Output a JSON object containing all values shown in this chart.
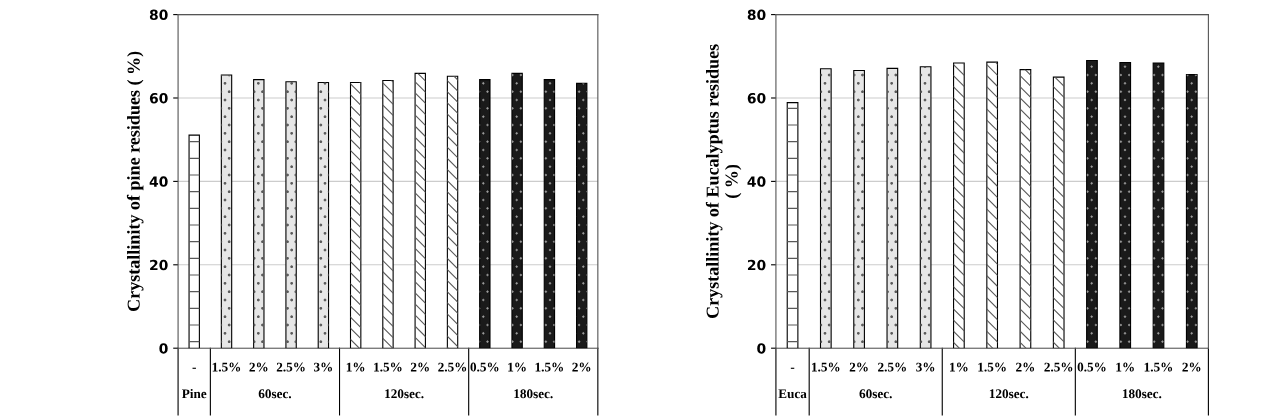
{
  "chart_data": [
    {
      "type": "bar",
      "ylabel": "Crystallinity of pine residues ( %)",
      "categories": [
        "-",
        "1.5%",
        "2%",
        "2.5%",
        "3%",
        "1%",
        "1.5%",
        "2%",
        "2.5%",
        "0.5%",
        "1%",
        "1.5%",
        "2%"
      ],
      "values": [
        51.1,
        65.5,
        64.4,
        63.9,
        63.7,
        63.7,
        64.2,
        65.9,
        65.2,
        64.4,
        65.9,
        64.4,
        63.5
      ],
      "colors": [
        "#ffffff",
        "#e6e6e6",
        "#e6e6e6",
        "#e6e6e6",
        "#e6e6e6",
        "#ffffff",
        "#ffffff",
        "#ffffff",
        "#ffffff",
        "#1a1a1a",
        "#1a1a1a",
        "#1a1a1a",
        "#1a1a1a"
      ],
      "annotations": [
        "Pine",
        "60sec.",
        "120sec.",
        "180sec."
      ],
      "ylim": [
        0,
        80
      ],
      "yticks": [
        0,
        20,
        40,
        60,
        80
      ],
      "grid": "y"
    },
    {
      "type": "bar",
      "ylabel": "Crystallinity of Eucalyptus residues\n( %)",
      "categories": [
        "-",
        "1.5%",
        "2%",
        "2.5%",
        "3%",
        "1%",
        "1.5%",
        "2%",
        "2.5%",
        "0.5%",
        "1%",
        "1.5%",
        "2%"
      ],
      "values": [
        58.9,
        67.0,
        66.6,
        67.1,
        67.5,
        68.4,
        68.6,
        66.8,
        65.0,
        69.0,
        68.5,
        68.4,
        65.6
      ],
      "colors": [
        "#ffffff",
        "#e6e6e6",
        "#e6e6e6",
        "#e6e6e6",
        "#e6e6e6",
        "#ffffff",
        "#ffffff",
        "#ffffff",
        "#ffffff",
        "#1a1a1a",
        "#1a1a1a",
        "#1a1a1a",
        "#1a1a1a"
      ],
      "annotations": [
        "Euca",
        "60sec.",
        "120sec.",
        "180sec."
      ],
      "ylim": [
        0,
        80
      ],
      "yticks": [
        0,
        20,
        40,
        60,
        80
      ],
      "grid": "y"
    }
  ]
}
